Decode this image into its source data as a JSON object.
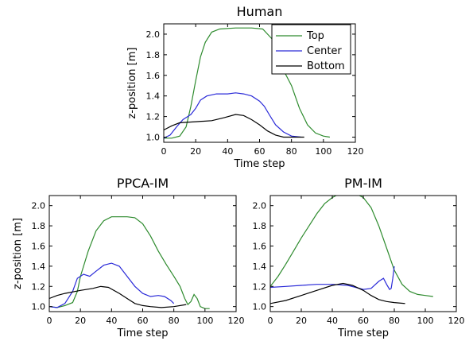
{
  "chart_data": [
    {
      "type": "line",
      "title": "Human",
      "xlabel": "Time step",
      "ylabel": "z-position [m]",
      "xlim": [
        0,
        120
      ],
      "ylim": [
        0.95,
        2.1
      ],
      "xticks": [
        0,
        20,
        40,
        60,
        80,
        100,
        120
      ],
      "yticks": [
        1.0,
        1.2,
        1.4,
        1.6,
        1.8,
        2.0
      ],
      "legend": "top-right",
      "series": [
        {
          "name": "Top",
          "color": "#2e8b2e",
          "points": [
            [
              0,
              0.99
            ],
            [
              5,
              0.99
            ],
            [
              10,
              1.01
            ],
            [
              14,
              1.1
            ],
            [
              17,
              1.3
            ],
            [
              20,
              1.55
            ],
            [
              23,
              1.78
            ],
            [
              26,
              1.92
            ],
            [
              30,
              2.02
            ],
            [
              35,
              2.05
            ],
            [
              45,
              2.06
            ],
            [
              55,
              2.06
            ],
            [
              62,
              2.05
            ],
            [
              68,
              1.95
            ],
            [
              72,
              1.8
            ],
            [
              75,
              1.65
            ],
            [
              80,
              1.5
            ],
            [
              85,
              1.28
            ],
            [
              90,
              1.12
            ],
            [
              95,
              1.04
            ],
            [
              100,
              1.01
            ],
            [
              104,
              1.0
            ]
          ]
        },
        {
          "name": "Center",
          "color": "#2a2ad8",
          "points": [
            [
              0,
              0.99
            ],
            [
              4,
              1.02
            ],
            [
              8,
              1.1
            ],
            [
              12,
              1.17
            ],
            [
              15,
              1.2
            ],
            [
              17,
              1.22
            ],
            [
              20,
              1.28
            ],
            [
              23,
              1.36
            ],
            [
              27,
              1.4
            ],
            [
              33,
              1.42
            ],
            [
              40,
              1.42
            ],
            [
              45,
              1.43
            ],
            [
              50,
              1.42
            ],
            [
              55,
              1.4
            ],
            [
              60,
              1.35
            ],
            [
              63,
              1.3
            ],
            [
              66,
              1.22
            ],
            [
              70,
              1.12
            ],
            [
              75,
              1.05
            ],
            [
              80,
              1.01
            ],
            [
              86,
              1.0
            ]
          ]
        },
        {
          "name": "Bottom",
          "color": "#000000",
          "points": [
            [
              0,
              1.07
            ],
            [
              5,
              1.11
            ],
            [
              10,
              1.14
            ],
            [
              20,
              1.15
            ],
            [
              30,
              1.16
            ],
            [
              38,
              1.19
            ],
            [
              45,
              1.22
            ],
            [
              50,
              1.21
            ],
            [
              55,
              1.17
            ],
            [
              60,
              1.12
            ],
            [
              65,
              1.06
            ],
            [
              70,
              1.02
            ],
            [
              75,
              1.0
            ],
            [
              82,
              1.0
            ],
            [
              88,
              1.0
            ]
          ]
        }
      ]
    },
    {
      "type": "line",
      "title": "PPCA-IM",
      "xlabel": "Time step",
      "ylabel": "z-position [m]",
      "xlim": [
        0,
        120
      ],
      "ylim": [
        0.95,
        2.1
      ],
      "xticks": [
        0,
        20,
        40,
        60,
        80,
        100,
        120
      ],
      "yticks": [
        1.0,
        1.2,
        1.4,
        1.6,
        1.8,
        2.0
      ],
      "series": [
        {
          "name": "Top",
          "color": "#2e8b2e",
          "points": [
            [
              0,
              1.0
            ],
            [
              5,
              0.99
            ],
            [
              10,
              1.01
            ],
            [
              15,
              1.04
            ],
            [
              18,
              1.15
            ],
            [
              20,
              1.3
            ],
            [
              25,
              1.55
            ],
            [
              30,
              1.75
            ],
            [
              35,
              1.85
            ],
            [
              40,
              1.89
            ],
            [
              50,
              1.89
            ],
            [
              55,
              1.88
            ],
            [
              60,
              1.82
            ],
            [
              65,
              1.7
            ],
            [
              70,
              1.55
            ],
            [
              75,
              1.42
            ],
            [
              80,
              1.3
            ],
            [
              84,
              1.2
            ],
            [
              87,
              1.08
            ],
            [
              89,
              1.02
            ],
            [
              91,
              1.05
            ],
            [
              93,
              1.12
            ],
            [
              95,
              1.08
            ],
            [
              97,
              1.0
            ],
            [
              100,
              0.98
            ],
            [
              103,
              0.98
            ]
          ]
        },
        {
          "name": "Center",
          "color": "#2a2ad8",
          "points": [
            [
              0,
              1.0
            ],
            [
              5,
              0.99
            ],
            [
              10,
              1.03
            ],
            [
              15,
              1.15
            ],
            [
              18,
              1.28
            ],
            [
              22,
              1.32
            ],
            [
              26,
              1.3
            ],
            [
              30,
              1.35
            ],
            [
              35,
              1.41
            ],
            [
              40,
              1.43
            ],
            [
              45,
              1.4
            ],
            [
              50,
              1.3
            ],
            [
              55,
              1.2
            ],
            [
              60,
              1.13
            ],
            [
              65,
              1.1
            ],
            [
              70,
              1.11
            ],
            [
              74,
              1.1
            ],
            [
              78,
              1.06
            ],
            [
              80,
              1.03
            ]
          ]
        },
        {
          "name": "Bottom",
          "color": "#000000",
          "points": [
            [
              0,
              1.08
            ],
            [
              5,
              1.11
            ],
            [
              10,
              1.13
            ],
            [
              20,
              1.16
            ],
            [
              28,
              1.18
            ],
            [
              33,
              1.2
            ],
            [
              38,
              1.19
            ],
            [
              45,
              1.13
            ],
            [
              50,
              1.08
            ],
            [
              55,
              1.03
            ],
            [
              60,
              1.01
            ],
            [
              65,
              1.0
            ],
            [
              72,
              0.99
            ],
            [
              80,
              1.0
            ],
            [
              88,
              1.02
            ]
          ]
        }
      ]
    },
    {
      "type": "line",
      "title": "PM-IM",
      "xlabel": "Time step",
      "ylabel": "",
      "xlim": [
        0,
        120
      ],
      "ylim": [
        0.95,
        2.1
      ],
      "xticks": [
        0,
        20,
        40,
        60,
        80,
        100,
        120
      ],
      "yticks": [
        1.0,
        1.2,
        1.4,
        1.6,
        1.8,
        2.0
      ],
      "series": [
        {
          "name": "Top",
          "color": "#2e8b2e",
          "points": [
            [
              0,
              1.2
            ],
            [
              5,
              1.3
            ],
            [
              10,
              1.42
            ],
            [
              15,
              1.55
            ],
            [
              20,
              1.68
            ],
            [
              25,
              1.8
            ],
            [
              30,
              1.92
            ],
            [
              35,
              2.02
            ],
            [
              40,
              2.08
            ],
            [
              45,
              2.12
            ],
            [
              50,
              2.13
            ],
            [
              55,
              2.12
            ],
            [
              60,
              2.08
            ],
            [
              65,
              1.98
            ],
            [
              70,
              1.8
            ],
            [
              75,
              1.58
            ],
            [
              80,
              1.36
            ],
            [
              85,
              1.22
            ],
            [
              90,
              1.15
            ],
            [
              95,
              1.12
            ],
            [
              100,
              1.11
            ],
            [
              105,
              1.1
            ]
          ]
        },
        {
          "name": "Center",
          "color": "#2a2ad8",
          "points": [
            [
              0,
              1.19
            ],
            [
              10,
              1.2
            ],
            [
              20,
              1.21
            ],
            [
              30,
              1.22
            ],
            [
              40,
              1.22
            ],
            [
              50,
              1.21
            ],
            [
              55,
              1.19
            ],
            [
              60,
              1.17
            ],
            [
              65,
              1.18
            ],
            [
              70,
              1.25
            ],
            [
              73,
              1.28
            ],
            [
              75,
              1.22
            ],
            [
              77,
              1.17
            ],
            [
              78,
              1.18
            ],
            [
              79,
              1.28
            ],
            [
              80,
              1.4
            ]
          ]
        },
        {
          "name": "Bottom",
          "color": "#000000",
          "points": [
            [
              0,
              1.03
            ],
            [
              10,
              1.06
            ],
            [
              20,
              1.11
            ],
            [
              30,
              1.16
            ],
            [
              40,
              1.21
            ],
            [
              47,
              1.23
            ],
            [
              53,
              1.21
            ],
            [
              60,
              1.16
            ],
            [
              65,
              1.11
            ],
            [
              70,
              1.07
            ],
            [
              75,
              1.05
            ],
            [
              80,
              1.04
            ],
            [
              87,
              1.03
            ]
          ]
        }
      ]
    }
  ]
}
